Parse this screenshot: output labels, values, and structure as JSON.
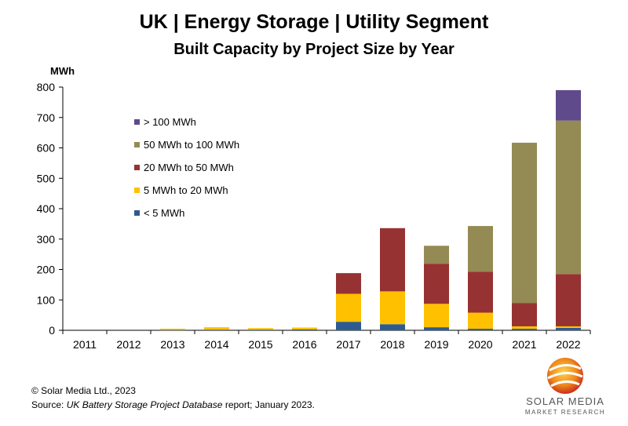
{
  "title": "UK | Energy Storage | Utility Segment",
  "subtitle": "Built Capacity by Project Size by Year",
  "footer": {
    "copyright": "© Solar Media Ltd., 2023",
    "source_prefix": "Source: ",
    "source_italic": "UK Battery Storage Project Database",
    "source_suffix": " report; January 2023."
  },
  "logo": {
    "line1": "SOLAR MEDIA",
    "line2": "MARKET RESEARCH"
  },
  "chart_data": {
    "type": "bar",
    "stacked": true,
    "ylabel": "MWh",
    "xlabel": "",
    "ylim": [
      0,
      800
    ],
    "yticks": [
      0,
      100,
      200,
      300,
      400,
      500,
      600,
      700,
      800
    ],
    "grid": false,
    "legend_position": "top-left",
    "categories": [
      "2011",
      "2012",
      "2013",
      "2014",
      "2015",
      "2016",
      "2017",
      "2018",
      "2019",
      "2020",
      "2021",
      "2022"
    ],
    "series": [
      {
        "name": "< 5 MWh",
        "color": "#2e5b8f",
        "values": [
          0,
          0,
          1,
          2,
          2,
          3,
          28,
          20,
          10,
          5,
          5,
          8
        ]
      },
      {
        "name": "5 MWh to 20 MWh",
        "color": "#ffc000",
        "values": [
          0,
          0,
          4,
          8,
          5,
          6,
          92,
          108,
          77,
          53,
          8,
          5
        ]
      },
      {
        "name": "20 MWh to 50 MWh",
        "color": "#973232",
        "values": [
          0,
          0,
          0,
          0,
          0,
          0,
          68,
          208,
          132,
          135,
          77,
          172
        ]
      },
      {
        "name": "50 MWh to 100 MWh",
        "color": "#948a54",
        "values": [
          0,
          0,
          0,
          0,
          0,
          0,
          0,
          0,
          59,
          150,
          527,
          505
        ]
      },
      {
        "name": "> 100 MWh",
        "color": "#5f4a8b",
        "values": [
          0,
          0,
          0,
          0,
          0,
          0,
          0,
          0,
          0,
          0,
          0,
          100
        ]
      }
    ],
    "legend_order": [
      "> 100 MWh",
      "50 MWh to 100 MWh",
      "20 MWh to 50 MWh",
      "5 MWh to 20 MWh",
      "< 5 MWh"
    ]
  }
}
